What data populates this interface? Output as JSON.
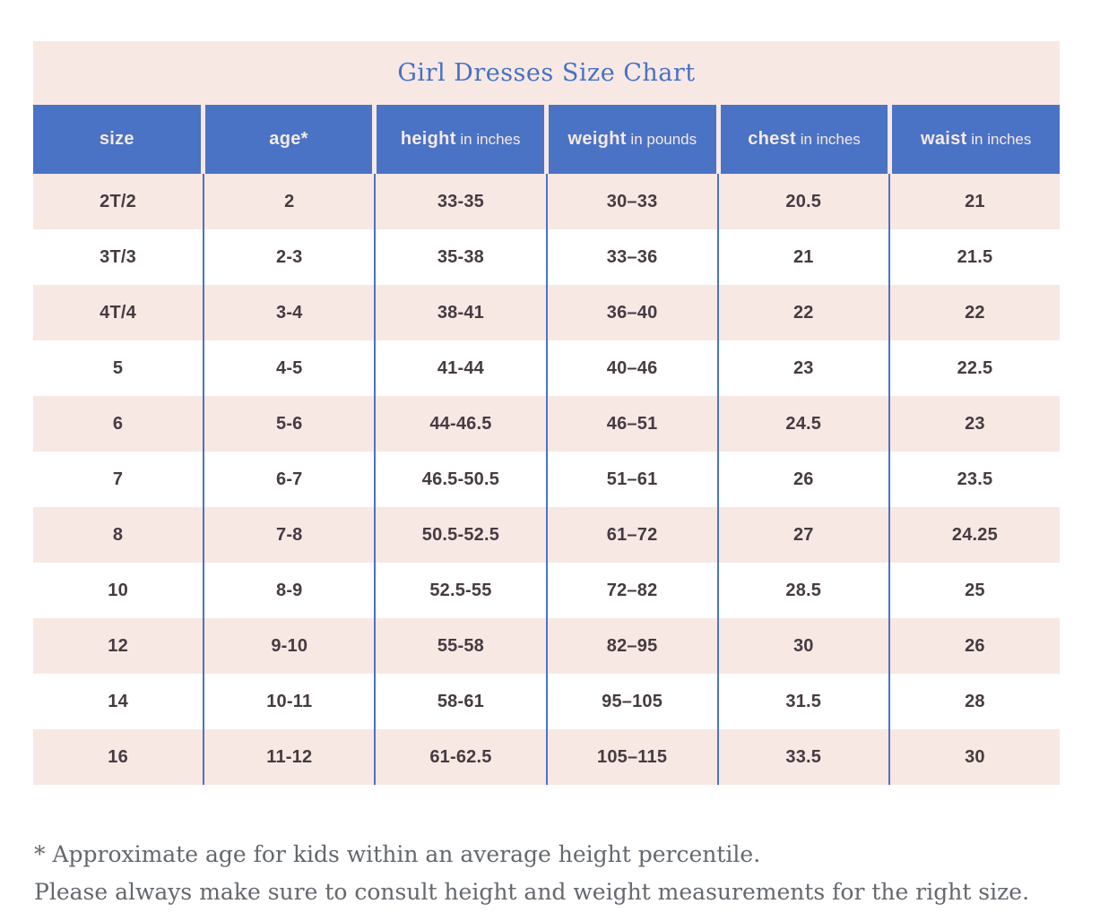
{
  "page": {
    "title": "Girl Dresses Size Chart",
    "footnotes": [
      "* Approximate age for kids within an average height percentile.",
      "Please always make sure to consult height and weight measurements for the right size."
    ]
  },
  "colors": {
    "header_blue": "#4a73c6",
    "row_pink": "#f8e8e4",
    "cell_text": "#453b41",
    "title_blue": "#4671c4",
    "footnote_gray": "#64686d"
  },
  "table": {
    "columns": [
      {
        "key": "size",
        "strong": "size",
        "suffix": ""
      },
      {
        "key": "age",
        "strong": "age*",
        "suffix": ""
      },
      {
        "key": "height",
        "strong": "height",
        "suffix": " in inches"
      },
      {
        "key": "weight",
        "strong": "weight",
        "suffix": " in pounds"
      },
      {
        "key": "chest",
        "strong": "chest",
        "suffix": " in inches"
      },
      {
        "key": "waist",
        "strong": "waist",
        "suffix": " in inches"
      }
    ],
    "rows": [
      [
        "2T/2",
        "2",
        "33-35",
        "30–33",
        "20.5",
        "21"
      ],
      [
        "3T/3",
        "2-3",
        "35-38",
        "33–36",
        "21",
        "21.5"
      ],
      [
        "4T/4",
        "3-4",
        "38-41",
        "36–40",
        "22",
        "22"
      ],
      [
        "5",
        "4-5",
        "41-44",
        "40–46",
        "23",
        "22.5"
      ],
      [
        "6",
        "5-6",
        "44-46.5",
        "46–51",
        "24.5",
        "23"
      ],
      [
        "7",
        "6-7",
        "46.5-50.5",
        "51–61",
        "26",
        "23.5"
      ],
      [
        "8",
        "7-8",
        "50.5-52.5",
        "61–72",
        "27",
        "24.25"
      ],
      [
        "10",
        "8-9",
        "52.5-55",
        "72–82",
        "28.5",
        "25"
      ],
      [
        "12",
        "9-10",
        "55-58",
        "82–95",
        "30",
        "26"
      ],
      [
        "14",
        "10-11",
        "58-61",
        "95–105",
        "31.5",
        "28"
      ],
      [
        "16",
        "11-12",
        "61-62.5",
        "105–115",
        "33.5",
        "30"
      ]
    ]
  },
  "chart_data": {
    "type": "table",
    "title": "Girl Dresses Size Chart",
    "columns": [
      "size",
      "age*",
      "height in inches",
      "weight in pounds",
      "chest in inches",
      "waist in inches"
    ],
    "rows": [
      [
        "2T/2",
        "2",
        "33-35",
        "30-33",
        "20.5",
        "21"
      ],
      [
        "3T/3",
        "2-3",
        "35-38",
        "33-36",
        "21",
        "21.5"
      ],
      [
        "4T/4",
        "3-4",
        "38-41",
        "36-40",
        "22",
        "22"
      ],
      [
        "5",
        "4-5",
        "41-44",
        "40-46",
        "23",
        "22.5"
      ],
      [
        "6",
        "5-6",
        "44-46.5",
        "46-51",
        "24.5",
        "23"
      ],
      [
        "7",
        "6-7",
        "46.5-50.5",
        "51-61",
        "26",
        "23.5"
      ],
      [
        "8",
        "7-8",
        "50.5-52.5",
        "61-72",
        "27",
        "24.25"
      ],
      [
        "10",
        "8-9",
        "52.5-55",
        "72-82",
        "28.5",
        "25"
      ],
      [
        "12",
        "9-10",
        "55-58",
        "82-95",
        "30",
        "26"
      ],
      [
        "14",
        "10-11",
        "58-61",
        "95-105",
        "31.5",
        "28"
      ],
      [
        "16",
        "11-12",
        "61-62.5",
        "105-115",
        "33.5",
        "30"
      ]
    ],
    "notes": [
      "* Approximate age for kids within an average height percentile.",
      "Please always make sure to consult height and weight measurements for the right size."
    ]
  }
}
